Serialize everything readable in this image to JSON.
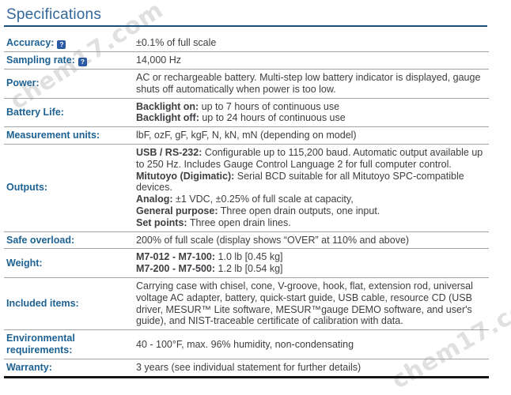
{
  "title": "Specifications",
  "watermark": {
    "text": "chem17.com",
    "color": "#d9d9d9"
  },
  "colors": {
    "title": "#33689c",
    "title_rule": "#1b4e79",
    "label": "#1d6293",
    "value": "#3e3e42",
    "divider": "#a3a3a3",
    "bottom_rule": "#161616",
    "help_bg": "#2b5aa5"
  },
  "table": {
    "help_glyph": "?",
    "rows": [
      {
        "id": "accuracy",
        "label": "Accuracy:",
        "help": true,
        "value": [
          [
            {
              "t": "±0.1% of full scale"
            }
          ]
        ]
      },
      {
        "id": "sampling-rate",
        "label": "Sampling rate:",
        "help": true,
        "value": [
          [
            {
              "t": "14,000 Hz"
            }
          ]
        ]
      },
      {
        "id": "power",
        "label": "Power:",
        "help": false,
        "value": [
          [
            {
              "t": "AC or rechargeable battery. Multi-step low battery indicator is displayed, gauge shuts off automatically when power is too low."
            }
          ]
        ]
      },
      {
        "id": "battery-life",
        "label": "Battery Life:",
        "help": false,
        "value": [
          [
            {
              "b": true,
              "t": "Backlight on:"
            },
            {
              "t": " up to 7 hours of continuous use"
            }
          ],
          [
            {
              "b": true,
              "t": "Backlight off:"
            },
            {
              "t": " up to 24 hours of continuous use"
            }
          ]
        ]
      },
      {
        "id": "measurement-units",
        "label": "Measurement units:",
        "help": false,
        "value": [
          [
            {
              "t": "lbF, ozF, gF, kgF, N, kN, mN (depending on model)"
            }
          ]
        ]
      },
      {
        "id": "outputs",
        "label": "Outputs:",
        "help": false,
        "value": [
          [
            {
              "b": true,
              "t": "USB / RS-232:"
            },
            {
              "t": " Configurable up to 115,200 baud. Automatic output available up to 250 Hz. Includes Gauge Control Language 2 for full computer control."
            }
          ],
          [
            {
              "b": true,
              "t": "Mitutoyo (Digimatic):"
            },
            {
              "t": " Serial BCD suitable for all Mitutoyo SPC-compatible devices."
            }
          ],
          [
            {
              "b": true,
              "t": "Analog:"
            },
            {
              "t": " ±1 VDC, ±0.25% of full scale at capacity,"
            }
          ],
          [
            {
              "b": true,
              "t": "General purpose:"
            },
            {
              "t": " Three open drain outputs, one input."
            }
          ],
          [
            {
              "b": true,
              "t": "Set points:"
            },
            {
              "t": " Three open drain lines."
            }
          ]
        ]
      },
      {
        "id": "safe-overload",
        "label": "Safe overload:",
        "help": false,
        "value": [
          [
            {
              "t": "200% of full scale (display shows “OVER” at 110% and above)"
            }
          ]
        ]
      },
      {
        "id": "weight",
        "label": "Weight:",
        "help": false,
        "value": [
          [
            {
              "b": true,
              "t": "M7-012 - M7-100:"
            },
            {
              "t": " 1.0 lb [0.45 kg]"
            }
          ],
          [
            {
              "b": true,
              "t": "M7-200 - M7-500:"
            },
            {
              "t": " 1.2 lb [0.54 kg]"
            }
          ]
        ]
      },
      {
        "id": "included-items",
        "label": "Included items:",
        "help": false,
        "value": [
          [
            {
              "t": "Carrying case with chisel, cone, V-groove, hook, flat, extension rod, universal voltage AC adapter, battery, quick-start guide, USB cable, resource CD (USB driver, MESUR™ Lite software, MESUR™gauge DEMO software, and user's guide), and NIST-traceable certificate of calibration with data."
            }
          ]
        ]
      },
      {
        "id": "environmental-requirements",
        "label": "Environmental requirements:",
        "help": false,
        "value": [
          [
            {
              "t": "40 - 100°F, max. 96% humidity, non-condensating"
            }
          ]
        ]
      },
      {
        "id": "warranty",
        "label": "Warranty:",
        "help": false,
        "value": [
          [
            {
              "t": "3 years (see individual statement for further details)"
            }
          ]
        ]
      }
    ]
  }
}
